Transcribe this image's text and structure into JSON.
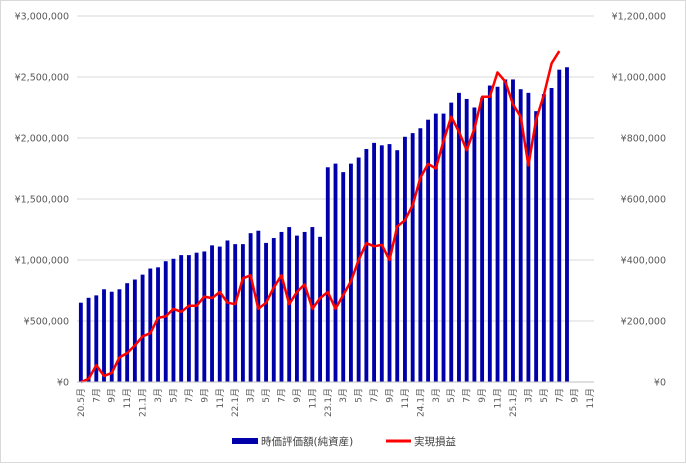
{
  "chart_data": {
    "type": "bar",
    "title": "",
    "xlabel": "",
    "ylabel": "",
    "ylim": [
      0,
      3000000
    ],
    "y2lim": [
      0,
      1200000
    ],
    "grid": true,
    "legend_placement": "bottom",
    "y_ticks": [
      "¥0",
      "¥500,000",
      "¥1,000,000",
      "¥1,500,000",
      "¥2,000,000",
      "¥2,500,000",
      "¥3,000,000"
    ],
    "y2_ticks": [
      "¥0",
      "¥200,000",
      "¥400,000",
      "¥600,000",
      "¥800,000",
      "¥1,000,000",
      "¥1,200,000"
    ],
    "categories": [
      "20.5月",
      "",
      "7月",
      "",
      "9月",
      "",
      "11月",
      "",
      "21.1月",
      "",
      "3月",
      "",
      "5月",
      "",
      "7月",
      "",
      "9月",
      "",
      "11月",
      "",
      "22.1月",
      "",
      "3月",
      "",
      "5月",
      "",
      "7月",
      "",
      "9月",
      "",
      "11月",
      "",
      "23.1月",
      "",
      "3月",
      "",
      "5月",
      "",
      "7月",
      "",
      "9月",
      "",
      "11月",
      "",
      "24.1月",
      "",
      "3月",
      "",
      "5月",
      "",
      "7月",
      "",
      "9月",
      "",
      "11月",
      "",
      "25.1月",
      "",
      "3月",
      "",
      "5月",
      "",
      "7月",
      "",
      "9月",
      "",
      "11月"
    ],
    "series": [
      {
        "name": "時価評価額(純資産)",
        "axis": "left",
        "color": "#0000aa",
        "values": [
          650000,
          690000,
          710000,
          760000,
          740000,
          760000,
          810000,
          840000,
          880000,
          930000,
          940000,
          990000,
          1010000,
          1040000,
          1040000,
          1060000,
          1070000,
          1120000,
          1110000,
          1160000,
          1130000,
          1130000,
          1220000,
          1240000,
          1140000,
          1180000,
          1230000,
          1270000,
          1200000,
          1230000,
          1270000,
          1190000,
          1760000,
          1790000,
          1720000,
          1790000,
          1840000,
          1910000,
          1960000,
          1940000,
          1950000,
          1900000,
          2010000,
          2040000,
          2080000,
          2150000,
          2200000,
          2200000,
          2290000,
          2370000,
          2320000,
          2250000,
          2330000,
          2430000,
          2420000,
          2480000,
          2480000,
          2400000,
          2370000,
          2220000,
          2360000,
          2410000,
          2560000,
          2580000,
          null,
          null,
          null
        ]
      },
      {
        "name": "実現損益",
        "axis": "right",
        "color": "#ff0000",
        "values": [
          0,
          10000,
          55000,
          20000,
          30000,
          80000,
          95000,
          120000,
          150000,
          160000,
          210000,
          215000,
          240000,
          230000,
          250000,
          250000,
          280000,
          275000,
          295000,
          260000,
          255000,
          340000,
          350000,
          240000,
          260000,
          310000,
          350000,
          255000,
          295000,
          320000,
          240000,
          275000,
          295000,
          240000,
          285000,
          330000,
          400000,
          455000,
          445000,
          450000,
          400000,
          510000,
          530000,
          580000,
          670000,
          715000,
          700000,
          790000,
          870000,
          820000,
          760000,
          830000,
          935000,
          935000,
          1015000,
          985000,
          910000,
          870000,
          710000,
          860000,
          940000,
          1045000,
          1085000,
          null,
          null,
          null,
          null
        ]
      }
    ]
  },
  "legend": {
    "items": [
      {
        "label": "時価評価額(純資産)",
        "color": "#0000aa"
      },
      {
        "label": "実現損益",
        "color": "#ff0000"
      }
    ]
  }
}
